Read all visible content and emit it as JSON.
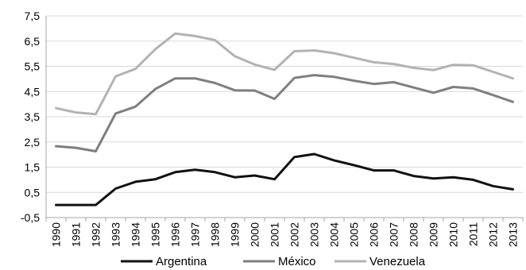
{
  "chart_data": {
    "type": "line",
    "title": "",
    "xlabel": "",
    "ylabel": "",
    "ylim": [
      -0.5,
      7.5
    ],
    "yticks": [
      "7,5",
      "6,5",
      "5,5",
      "4,5",
      "3,5",
      "2,5",
      "1,5",
      "0,5",
      "-0,5"
    ],
    "ytick_values": [
      7.5,
      6.5,
      5.5,
      4.5,
      3.5,
      2.5,
      1.5,
      0.5,
      -0.5
    ],
    "grid": true,
    "legend_position": "bottom",
    "x": [
      "1990",
      "1991",
      "1992",
      "1993",
      "1994",
      "1995",
      "1996",
      "1997",
      "1998",
      "1999",
      "2000",
      "2001",
      "2002",
      "2003",
      "2004",
      "2005",
      "2006",
      "2007",
      "2008",
      "2009",
      "2010",
      "2011",
      "2012",
      "2013"
    ],
    "series": [
      {
        "name": "Argentina",
        "color": "#111111",
        "values": [
          0.0,
          0.0,
          0.0,
          0.65,
          0.92,
          1.02,
          1.3,
          1.4,
          1.3,
          1.1,
          1.17,
          1.02,
          1.9,
          2.02,
          1.77,
          1.58,
          1.37,
          1.37,
          1.15,
          1.05,
          1.1,
          1.0,
          0.75,
          0.62
        ]
      },
      {
        "name": "México",
        "color": "#7f7f7f",
        "values": [
          2.33,
          2.27,
          2.13,
          3.63,
          3.9,
          4.6,
          5.02,
          5.02,
          4.84,
          4.55,
          4.54,
          4.21,
          5.04,
          5.15,
          5.08,
          4.93,
          4.8,
          4.87,
          4.66,
          4.45,
          4.68,
          4.62,
          4.36,
          4.09
        ]
      },
      {
        "name": "Venezuela",
        "color": "#b3b3b3",
        "values": [
          3.84,
          3.67,
          3.6,
          5.1,
          5.4,
          6.18,
          6.8,
          6.7,
          6.54,
          5.9,
          5.57,
          5.36,
          6.1,
          6.13,
          6.02,
          5.84,
          5.66,
          5.59,
          5.44,
          5.35,
          5.56,
          5.54,
          5.28,
          5.02
        ]
      }
    ]
  }
}
